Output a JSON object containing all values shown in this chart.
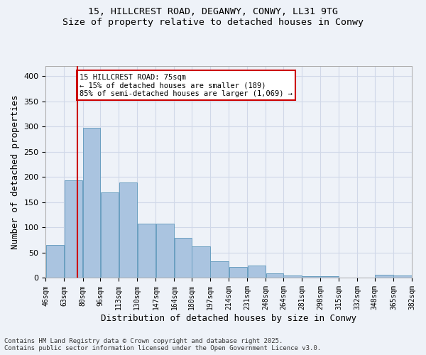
{
  "title_line1": "15, HILLCREST ROAD, DEGANWY, CONWY, LL31 9TG",
  "title_line2": "Size of property relative to detached houses in Conwy",
  "xlabel": "Distribution of detached houses by size in Conwy",
  "ylabel": "Number of detached properties",
  "bins": [
    46,
    63,
    80,
    96,
    113,
    130,
    147,
    164,
    180,
    197,
    214,
    231,
    248,
    264,
    281,
    298,
    315,
    332,
    348,
    365,
    382
  ],
  "values": [
    65,
    193,
    297,
    170,
    189,
    108,
    108,
    80,
    62,
    33,
    22,
    24,
    9,
    5,
    4,
    3,
    1,
    0,
    6,
    5
  ],
  "bar_color": "#aac4e0",
  "bar_edge_color": "#6a9fc0",
  "grid_color": "#d0d8e8",
  "background_color": "#eef2f8",
  "property_line_x": 75,
  "property_line_color": "#cc0000",
  "annotation_text": "15 HILLCREST ROAD: 75sqm\n← 15% of detached houses are smaller (189)\n85% of semi-detached houses are larger (1,069) →",
  "annotation_box_color": "#ffffff",
  "annotation_box_edge": "#cc0000",
  "ylim": [
    0,
    420
  ],
  "footer_line1": "Contains HM Land Registry data © Crown copyright and database right 2025.",
  "footer_line2": "Contains public sector information licensed under the Open Government Licence v3.0.",
  "tick_labels": [
    "46sqm",
    "63sqm",
    "80sqm",
    "96sqm",
    "113sqm",
    "130sqm",
    "147sqm",
    "164sqm",
    "180sqm",
    "197sqm",
    "214sqm",
    "231sqm",
    "248sqm",
    "264sqm",
    "281sqm",
    "298sqm",
    "315sqm",
    "332sqm",
    "348sqm",
    "365sqm",
    "382sqm"
  ]
}
